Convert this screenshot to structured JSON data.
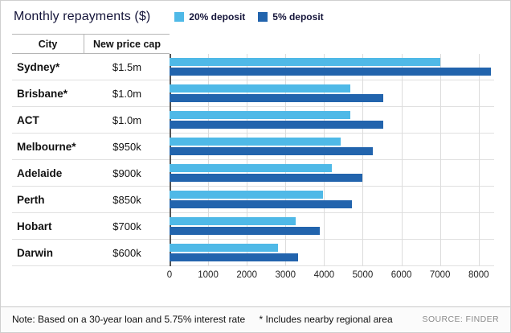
{
  "title": "Monthly repayments ($)",
  "legend": [
    {
      "label": "20% deposit",
      "color": "#4fb9e7"
    },
    {
      "label": "5% deposit",
      "color": "#2264ad"
    }
  ],
  "table": {
    "city_header": "City",
    "price_header": "New price cap"
  },
  "chart_data": {
    "type": "bar",
    "orientation": "horizontal",
    "title": "Monthly repayments ($)",
    "categories": [
      "Sydney*",
      "Brisbane*",
      "ACT",
      "Melbourne*",
      "Adelaide",
      "Perth",
      "Hobart",
      "Darwin"
    ],
    "price_caps": [
      "$1.5m",
      "$1.0m",
      "$1.0m",
      "$950k",
      "$900k",
      "$850k",
      "$700k",
      "$600k"
    ],
    "series": [
      {
        "name": "20% deposit",
        "color": "#4fb9e7",
        "values": [
          7000,
          4670,
          4670,
          4430,
          4200,
          3970,
          3270,
          2800
        ]
      },
      {
        "name": "5% deposit",
        "color": "#2264ad",
        "values": [
          8320,
          5540,
          5540,
          5270,
          4990,
          4710,
          3880,
          3330
        ]
      }
    ],
    "xticks": [
      0,
      1000,
      2000,
      3000,
      4000,
      5000,
      6000,
      7000,
      8000
    ],
    "xmax": 8400,
    "grid": true,
    "legend_position": "top"
  },
  "note": {
    "main": "Note: Based on a 30-year loan and 5.75% interest rate",
    "asterisk": "* Includes nearby regional area"
  },
  "source": "SOURCE: FINDER"
}
